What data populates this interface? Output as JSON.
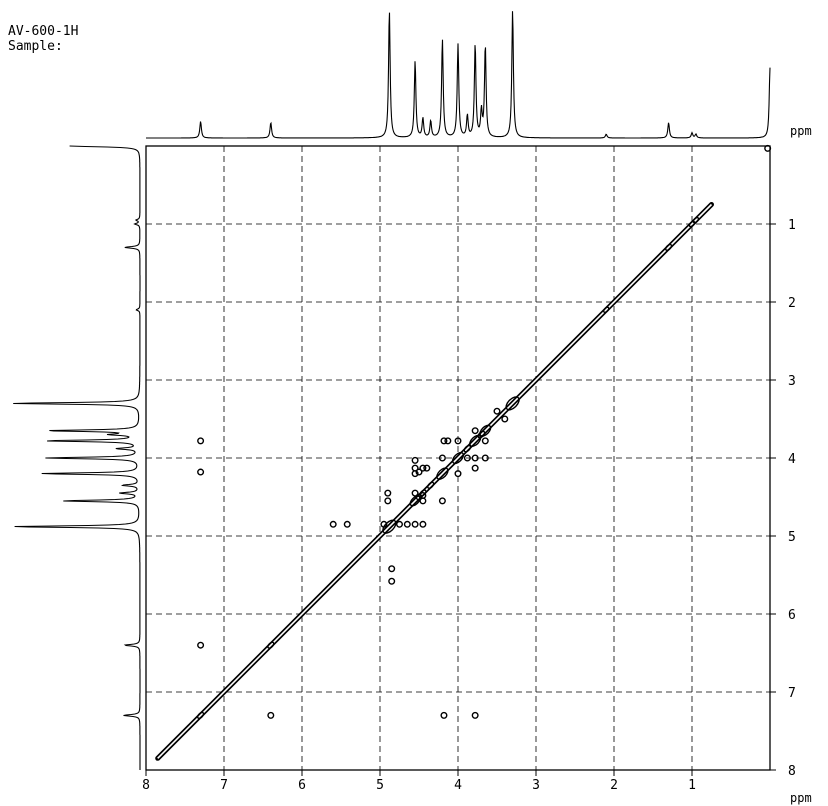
{
  "header": {
    "instrument": "AV-600-1H",
    "sample": "Sample:"
  },
  "colors": {
    "ink": "#000000",
    "grid": "#000000",
    "background": "#ffffff"
  },
  "chart_data": {
    "type": "scatter",
    "subtype": "2D NMR COSY contour plot with 1D projections",
    "xlabel": "ppm",
    "ylabel": "ppm",
    "x_axis": {
      "range": [
        8,
        0
      ],
      "reversed": true,
      "ticks": [
        8,
        7,
        6,
        5,
        4,
        3,
        2,
        1
      ]
    },
    "y_axis": {
      "range": [
        0,
        8
      ],
      "downward": true,
      "ticks": [
        1,
        2,
        3,
        4,
        5,
        6,
        7,
        8
      ]
    },
    "grid": true,
    "diagonal": {
      "from": 7.85,
      "to": 0.75
    },
    "projection_peaks": [
      {
        "ppm": 7.3,
        "intensity": 0.13
      },
      {
        "ppm": 6.4,
        "intensity": 0.12
      },
      {
        "ppm": 4.88,
        "intensity": 1.0
      },
      {
        "ppm": 4.55,
        "intensity": 0.6
      },
      {
        "ppm": 4.45,
        "intensity": 0.15
      },
      {
        "ppm": 4.35,
        "intensity": 0.13
      },
      {
        "ppm": 4.2,
        "intensity": 0.77
      },
      {
        "ppm": 4.0,
        "intensity": 0.73
      },
      {
        "ppm": 3.88,
        "intensity": 0.17
      },
      {
        "ppm": 3.78,
        "intensity": 0.73
      },
      {
        "ppm": 3.7,
        "intensity": 0.2
      },
      {
        "ppm": 3.65,
        "intensity": 0.72
      },
      {
        "ppm": 3.3,
        "intensity": 1.0
      },
      {
        "ppm": 2.1,
        "intensity": 0.03
      },
      {
        "ppm": 1.3,
        "intensity": 0.12
      },
      {
        "ppm": 1.0,
        "intensity": 0.04
      },
      {
        "ppm": 0.95,
        "intensity": 0.03
      },
      {
        "ppm": 0.0,
        "intensity": 0.55
      }
    ],
    "cross_peaks": [
      [
        7.3,
        3.78
      ],
      [
        7.3,
        4.18
      ],
      [
        7.3,
        6.4
      ],
      [
        6.4,
        7.3
      ],
      [
        4.18,
        7.3
      ],
      [
        3.78,
        7.3
      ],
      [
        4.85,
        5.42
      ],
      [
        4.85,
        5.58
      ],
      [
        5.6,
        4.85
      ],
      [
        5.42,
        4.85
      ],
      [
        4.55,
        4.03
      ],
      [
        4.55,
        4.13
      ],
      [
        4.5,
        4.18
      ],
      [
        4.45,
        4.13
      ],
      [
        4.4,
        4.13
      ],
      [
        4.55,
        4.45
      ],
      [
        4.45,
        4.55
      ],
      [
        4.5,
        4.5
      ],
      [
        4.45,
        4.48
      ],
      [
        4.18,
        3.78
      ],
      [
        4.13,
        3.78
      ],
      [
        4.0,
        3.78
      ],
      [
        3.88,
        4.0
      ],
      [
        3.78,
        4.0
      ],
      [
        3.78,
        4.13
      ],
      [
        3.65,
        4.0
      ],
      [
        3.78,
        3.65
      ],
      [
        3.65,
        3.78
      ],
      [
        4.0,
        4.2
      ],
      [
        4.2,
        4.0
      ],
      [
        4.55,
        4.2
      ],
      [
        4.2,
        4.55
      ],
      [
        3.5,
        3.4
      ],
      [
        3.4,
        3.5
      ],
      [
        4.95,
        4.85
      ],
      [
        4.75,
        4.85
      ],
      [
        4.65,
        4.85
      ],
      [
        4.55,
        4.85
      ],
      [
        4.45,
        4.85
      ],
      [
        4.9,
        4.55
      ],
      [
        4.9,
        4.45
      ],
      [
        0.03,
        0.03
      ]
    ]
  }
}
